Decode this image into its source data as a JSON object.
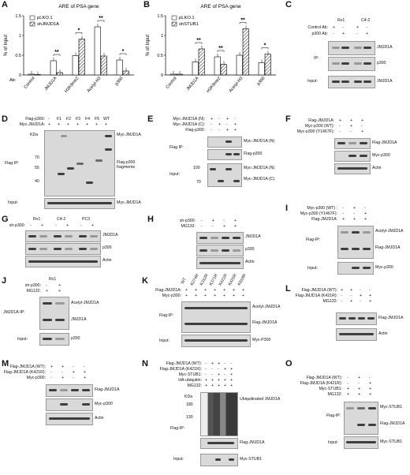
{
  "panels": {
    "A": {
      "letter": "A",
      "title": "ARE of PSA gene",
      "ylabel": "% of Input",
      "xprefix": "Ab:",
      "legend": [
        "pLKO.1",
        "shJMJD1A"
      ],
      "categories": [
        "Control",
        "JMJD1A",
        "H3K9me2",
        "Acetyl-H3",
        "p300"
      ],
      "sig": [
        "**",
        "*",
        "**",
        "*"
      ]
    },
    "B": {
      "letter": "B",
      "title": "ARE of PSA gene",
      "ylabel": "% of Input",
      "legend": [
        "pLKO.1",
        "shSTUB1"
      ],
      "categories": [
        "Control",
        "JMJD1A",
        "H3K9me2",
        "Acetyl-H3",
        "p300"
      ],
      "sig": [
        "**",
        "**",
        "**",
        "*"
      ]
    },
    "C": {
      "letter": "C",
      "cols": [
        "Rv1",
        "C4-2"
      ],
      "rows": [
        "Control Ab:",
        "p300 Ab:"
      ],
      "signs": [
        [
          "+",
          "-",
          "+",
          "-"
        ],
        [
          "-",
          "+",
          "-",
          "+"
        ]
      ],
      "ip": "IP:",
      "input": "Input:",
      "bands": [
        "JMJD1A",
        "p300",
        "JMJD1A"
      ]
    },
    "D": {
      "letter": "D",
      "rows": [
        "Flag-p300:",
        "Myc-JMJD1A:"
      ],
      "cols": [
        "-",
        "F1",
        "F2",
        "F3",
        "F4",
        "F5",
        "WT"
      ],
      "plus": [
        "+",
        "+",
        "+",
        "+",
        "+",
        "+",
        "+"
      ],
      "kda": "KDa",
      "markers": [
        "70",
        "55",
        "40"
      ],
      "ip": "Flag-IP:",
      "input": "Input:",
      "bands": [
        "Myc-JMJD1A",
        "Flag-p300 fragments",
        "Myc-JMJD1A"
      ]
    },
    "E": {
      "letter": "E",
      "rows": [
        "Myc-JMJD1A (N):",
        "Myc-JMJD1A (C):",
        "Flag-p300:"
      ],
      "signs": [
        [
          "+",
          "-",
          "+",
          "-"
        ],
        [
          "-",
          "+",
          "-",
          "+"
        ],
        [
          "-",
          "-",
          "+",
          "+"
        ]
      ],
      "ip": "Flag IP:",
      "input": "Input:",
      "markers": [
        "100",
        "70"
      ],
      "bands": [
        "Myc-JMJD1A (N)",
        "Flag-p300",
        "Myc-JMJD1A (N)",
        "Myc-JMJD1A (C)"
      ]
    },
    "F": {
      "letter": "F",
      "rows": [
        "Flag-JMJD1A:",
        "Myc-p300 (WT):",
        "Myc-p300 (Y1467F):"
      ],
      "signs": [
        [
          "+",
          "+",
          "+"
        ],
        [
          "-",
          "+",
          "-"
        ],
        [
          "-",
          "-",
          "+"
        ]
      ],
      "bands": [
        "Flag-JMJD1A",
        "Myc-p300",
        "Actin"
      ]
    },
    "G": {
      "letter": "G",
      "cols": [
        "Rv1",
        "C4-2",
        "PC3"
      ],
      "rows": [
        "sh-p300:"
      ],
      "signs": [
        "-",
        "+",
        "-",
        "+",
        "-",
        "+"
      ],
      "bands": [
        "JMJD1A",
        "p300",
        "Actin"
      ]
    },
    "H": {
      "letter": "H",
      "rows": [
        "sh-p300:",
        "MG132:"
      ],
      "signs": [
        [
          "-",
          "+",
          "-",
          "+"
        ],
        [
          "-",
          "-",
          "+",
          "+"
        ]
      ],
      "bands": [
        "JMJD1A",
        "p300",
        "Actin"
      ]
    },
    "I": {
      "letter": "I",
      "rows": [
        "Myc-p300 (WT) :",
        "Myc-p300 (Y1467F):",
        "Flag-JMJD1A:"
      ],
      "signs": [
        [
          "-",
          "+",
          "-"
        ],
        [
          "-",
          "-",
          "+"
        ],
        [
          "+",
          "+",
          "+"
        ]
      ],
      "ip": "Flag-IP:",
      "input": "Input:",
      "bands": [
        "Acetyl-JMJD1A",
        "Flag-JMJD1A",
        "Myc-p300"
      ]
    },
    "J": {
      "letter": "J",
      "cols": [
        "Rv1"
      ],
      "rows": [
        "sh-p300:",
        "MG132:"
      ],
      "signs": [
        [
          "-",
          "+"
        ],
        [
          "+",
          "+"
        ]
      ],
      "ip": "JMJD1A-IP:",
      "input": "Input:",
      "bands": [
        "Acetyl-JMJD1A",
        "JMJD1A",
        "p300"
      ]
    },
    "K": {
      "letter": "K",
      "rows": [
        "Flag-JMJD1A:",
        "Myc-p300:"
      ],
      "cols": [
        "WT",
        "K274R",
        "K332R",
        "K371R",
        "K421R",
        "K425R",
        "K918R"
      ],
      "plus": [
        "+",
        "+",
        "+",
        "+",
        "+",
        "+",
        "+"
      ],
      "ip": "Flag-IP:",
      "input": "Input:",
      "bands": [
        "Acetyl-JMJD1A",
        "Flag-JMJD1A",
        "Myc-P300"
      ]
    },
    "L": {
      "letter": "L",
      "rows": [
        "Flag-JMJD1A (WT):",
        "Flag-JMJD1A (K421R):",
        "MG132:"
      ],
      "signs": [
        [
          "+",
          "+",
          "-",
          "-"
        ],
        [
          "-",
          "-",
          "+",
          "+"
        ],
        [
          "-",
          "+",
          "-",
          "+"
        ]
      ],
      "bands": [
        "Flag-JMJD1A",
        "Actin"
      ]
    },
    "M": {
      "letter": "M",
      "rows": [
        "Flag-JMJD1A (WT):",
        "Flag-JMJD1A (K421R):",
        "Myc-p300:"
      ],
      "signs": [
        [
          "+",
          "+",
          "-",
          "-"
        ],
        [
          "-",
          "-",
          "+",
          "+"
        ],
        [
          "-",
          "+",
          "-",
          "+"
        ]
      ],
      "bands": [
        "Flag-JMJD1A",
        "Myc-p300",
        "Actin"
      ]
    },
    "N": {
      "letter": "N",
      "rows": [
        "Flag-JMJD1A (WT):",
        "Flag-JMJD1A (K421R):",
        "Myc-STUB1:",
        "HA-ubiquitin:",
        "MG132:"
      ],
      "signs": [
        [
          "-",
          "+",
          "+",
          "-",
          "-"
        ],
        [
          "-",
          "-",
          "-",
          "+",
          "+"
        ],
        [
          "-",
          "-",
          "+",
          "-",
          "+"
        ],
        [
          "+",
          "+",
          "+",
          "+",
          "+"
        ],
        [
          "+",
          "+",
          "+",
          "+",
          "+"
        ]
      ],
      "kda": "KDa",
      "markers": [
        "180",
        "130"
      ],
      "ip": "Flag-IP:",
      "input": "Input:",
      "bands": [
        "Ubiquitinated JMJD1A",
        "Flag-JMJD1A",
        "Myc-STUB1"
      ]
    },
    "O": {
      "letter": "O",
      "rows": [
        "Flag-JMJD1A (WT):",
        "Flag-JMJD1A (K421R):",
        "Myc-STUB1:",
        "MG132:"
      ],
      "signs": [
        [
          "-",
          "+",
          "-"
        ],
        [
          "-",
          "-",
          "+"
        ],
        [
          "+",
          "+",
          "+"
        ],
        [
          "+",
          "+",
          "+"
        ]
      ],
      "ip": "Flag-IP:",
      "input": "Input:",
      "bands": [
        "Myc-STUB1",
        "Flag-JMJD1A",
        "Myc-STUB1"
      ]
    }
  },
  "chart_data": [
    {
      "type": "bar",
      "title": "ARE of PSA gene",
      "ylabel": "% of Input",
      "ylim": [
        0,
        1.5
      ],
      "yticks": [
        "0",
        "0.5",
        "1",
        "1.5"
      ],
      "categories": [
        "Control",
        "JMJD1A",
        "H3K9me2",
        "Acetyl-H3",
        "p300"
      ],
      "series": [
        {
          "name": "pLKO.1",
          "values": [
            0.02,
            0.36,
            0.49,
            1.22,
            0.38
          ]
        },
        {
          "name": "shJMJD1A",
          "values": [
            0.01,
            0.06,
            0.91,
            0.48,
            0.1
          ]
        }
      ]
    },
    {
      "type": "bar",
      "title": "ARE of PSA gene",
      "ylabel": "% of Input",
      "ylim": [
        0,
        1.5
      ],
      "yticks": [
        "0",
        "0.5",
        "1",
        "1.5"
      ],
      "categories": [
        "Control",
        "JMJD1A",
        "H3K9me2",
        "Acetyl-H3",
        "p300"
      ],
      "series": [
        {
          "name": "pLKO.1",
          "values": [
            0.02,
            0.33,
            0.46,
            0.5,
            0.31
          ]
        },
        {
          "name": "shSTUB1",
          "values": [
            0.02,
            0.66,
            0.27,
            1.17,
            0.53
          ]
        }
      ]
    }
  ]
}
